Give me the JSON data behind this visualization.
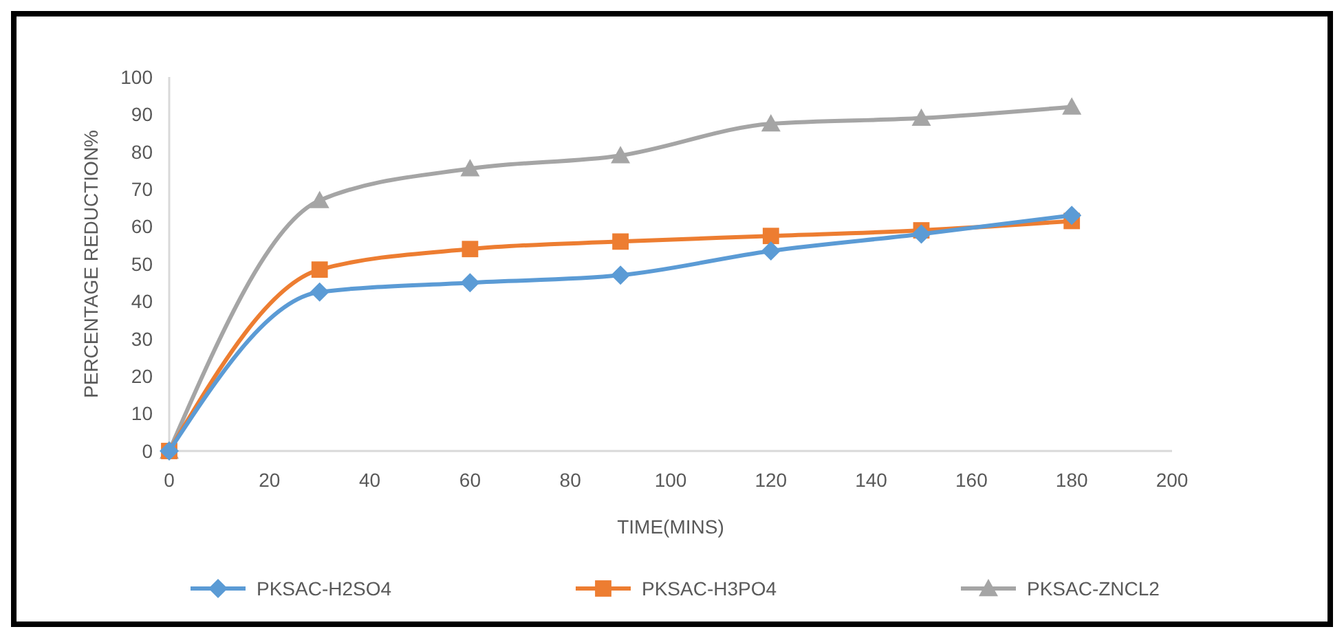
{
  "chart_data": {
    "type": "line",
    "xlabel": "TIME(MINS)",
    "ylabel": "PERCENTAGE REDUCTION%",
    "x": [
      0,
      30,
      60,
      90,
      120,
      150,
      180
    ],
    "series": [
      {
        "name": "PKSAC-H2SO4",
        "color": "#5b9bd5",
        "marker": "diamond",
        "values": [
          0,
          42.5,
          45,
          47,
          53.5,
          58,
          63
        ]
      },
      {
        "name": "PKSAC-H3PO4",
        "color": "#ed7d31",
        "marker": "square",
        "values": [
          0,
          48.5,
          54,
          56,
          57.5,
          59,
          61.5
        ]
      },
      {
        "name": "PKSAC-ZNCL2",
        "color": "#a5a5a5",
        "marker": "triangle",
        "values": [
          0,
          67,
          75.5,
          79,
          87.5,
          89,
          92
        ]
      }
    ],
    "xlim": [
      0,
      200
    ],
    "xticks": [
      0,
      20,
      40,
      60,
      80,
      100,
      120,
      140,
      160,
      180,
      200
    ],
    "ylim": [
      0,
      100
    ],
    "yticks": [
      0,
      10,
      20,
      30,
      40,
      50,
      60,
      70,
      80,
      90,
      100
    ],
    "grid": false,
    "legend": "bottom"
  }
}
